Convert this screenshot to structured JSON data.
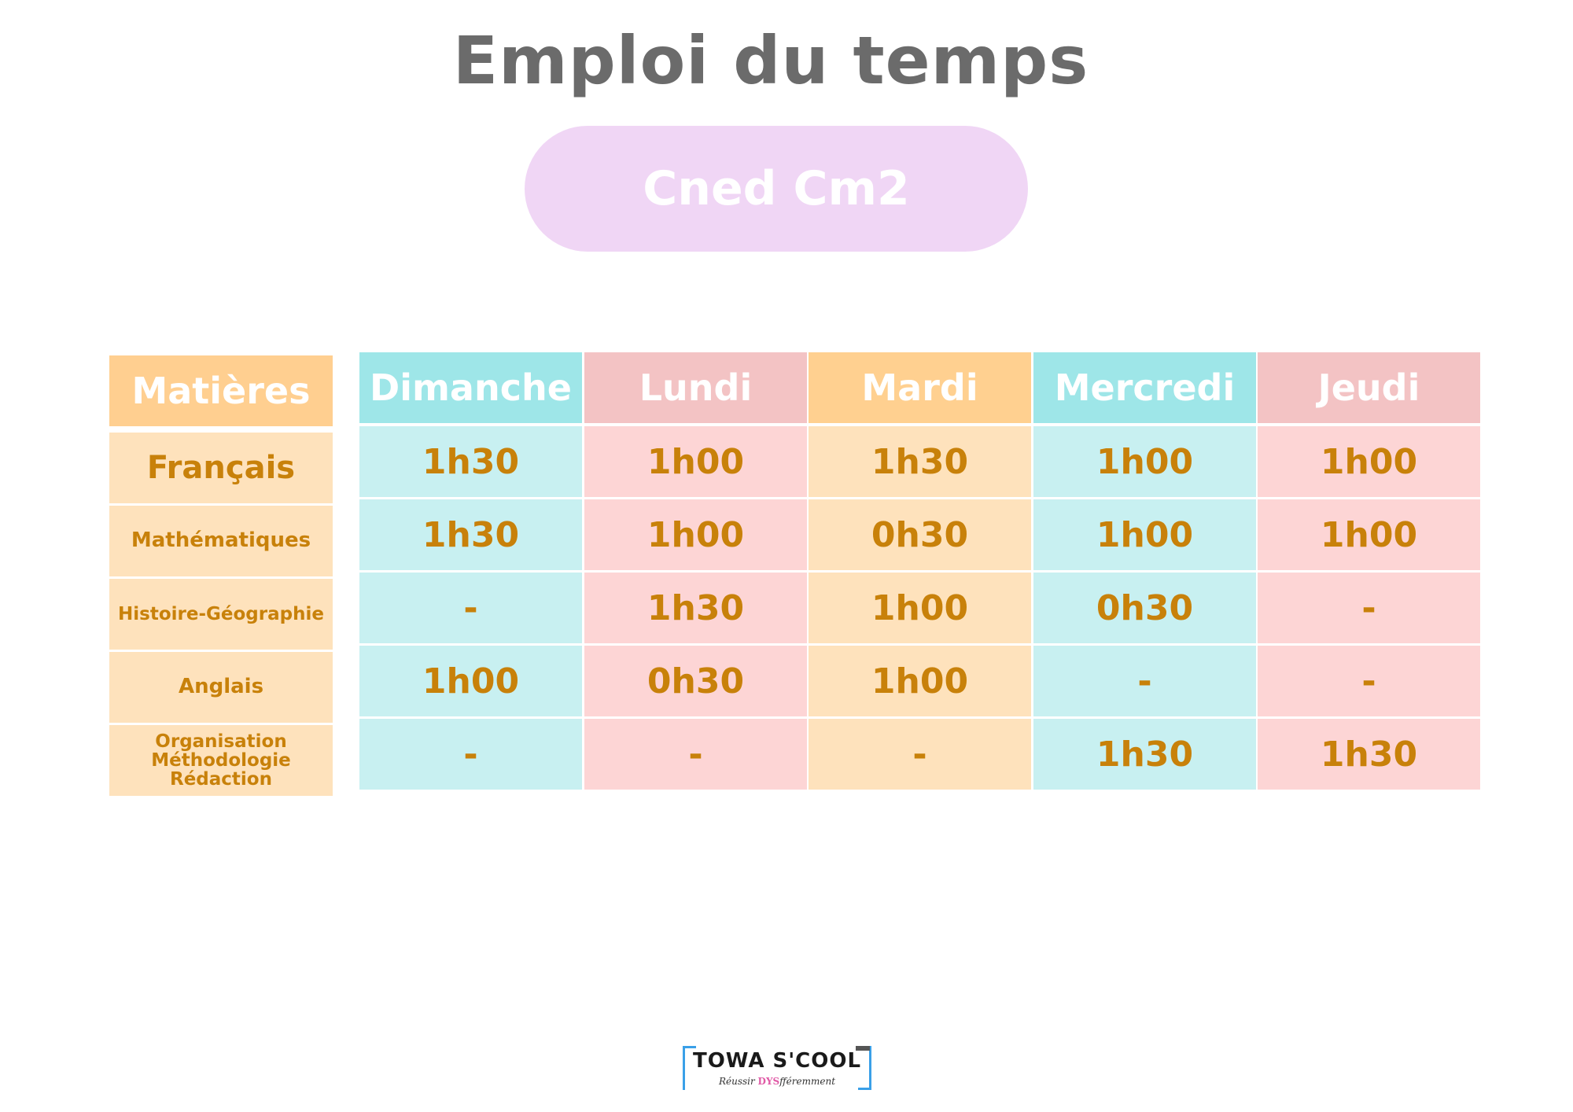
{
  "title": "Emploi du temps",
  "subtitle": "Cned Cm2",
  "table": {
    "subject_header": "Matières",
    "days": [
      {
        "label": "Dimanche",
        "head_color": "#9ee6e8",
        "cell_color": "#c8f0f1"
      },
      {
        "label": "Lundi",
        "head_color": "#f3c3c4",
        "cell_color": "#fdd5d5"
      },
      {
        "label": "Mardi",
        "head_color": "#ffd090",
        "cell_color": "#fee2bc"
      },
      {
        "label": "Mercredi",
        "head_color": "#9ee6e8",
        "cell_color": "#c8f0f1"
      },
      {
        "label": "Jeudi",
        "head_color": "#f3c3c4",
        "cell_color": "#fdd5d5"
      }
    ],
    "rows": [
      {
        "subject": "Français",
        "values": [
          "1h30",
          "1h00",
          "1h30",
          "1h00",
          "1h00"
        ]
      },
      {
        "subject": "Mathématiques",
        "values": [
          "1h30",
          "1h00",
          "0h30",
          "1h00",
          "1h00"
        ]
      },
      {
        "subject": "Histoire-Géographie",
        "values": [
          "-",
          "1h30",
          "1h00",
          "0h30",
          "-"
        ]
      },
      {
        "subject": "Anglais",
        "values": [
          "1h00",
          "0h30",
          "1h00",
          "-",
          "-"
        ]
      },
      {
        "subject": "Organisation\nMéthodologie\nRédaction",
        "values": [
          "-",
          "-",
          "-",
          "1h30",
          "1h30"
        ]
      }
    ]
  },
  "logo": {
    "name": "TOWA S'COOL",
    "tagline_pre": "Réussir ",
    "tagline_dys": "DYS",
    "tagline_post": "fféremment"
  },
  "colors": {
    "title_text": "#6b6b6b",
    "pill_bg": "#f0d6f5",
    "value_text": "#c8810a",
    "subject_head": "#ffcf90",
    "subject_cell": "#fee2bc"
  }
}
